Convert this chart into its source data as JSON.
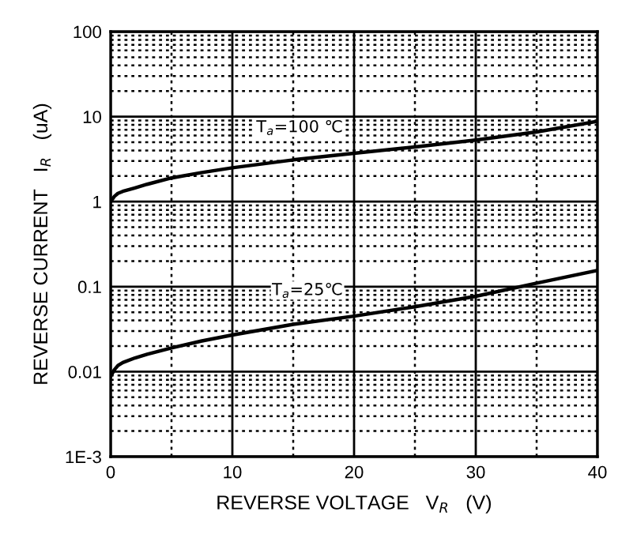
{
  "chart_data": {
    "type": "line",
    "xlabel": "REVERSE VOLTAGE   V$_{R}$   (V)",
    "ylabel": "REVERSE CURRENT   I$_{R}$   (uA)",
    "series": [
      {
        "color": "#000000",
        "x": [
          0,
          0.3,
          0.6,
          1,
          2,
          3,
          5,
          7.5,
          10,
          15,
          20,
          25,
          30,
          35,
          40
        ],
        "values": [
          1.0,
          1.15,
          1.25,
          1.32,
          1.45,
          1.6,
          1.9,
          2.2,
          2.5,
          3.1,
          3.7,
          4.4,
          5.3,
          6.6,
          8.8
        ]
      },
      {
        "color": "#000000",
        "x": [
          0,
          0.3,
          0.6,
          1,
          2,
          3,
          5,
          7.5,
          10,
          15,
          20,
          25,
          30,
          35,
          40
        ],
        "values": [
          0.0088,
          0.0105,
          0.0118,
          0.0128,
          0.0145,
          0.016,
          0.019,
          0.023,
          0.027,
          0.036,
          0.045,
          0.058,
          0.077,
          0.11,
          0.155
        ]
      }
    ],
    "annotations": [
      "T$_{a}$=100 ℃",
      "T$_{a}$=25℃"
    ],
    "log": "y",
    "grid": true,
    "line_style": "solid",
    "marker": "none",
    "xlim": [
      0,
      40
    ],
    "ylim": [
      0.001,
      100
    ],
    "xticks": [
      0,
      {
        "value": 5,
        "label": null
      },
      10,
      {
        "value": 15,
        "label": null
      },
      20,
      {
        "value": 25,
        "label": null
      },
      30,
      {
        "value": 35,
        "label": null
      },
      40
    ],
    "yticks": [
      {
        "value": 0.001,
        "label": "1E-3"
      },
      {
        "value": 0.002,
        "label": null
      },
      {
        "value": 0.003,
        "label": null
      },
      {
        "value": 0.004,
        "label": null
      },
      {
        "value": 0.005,
        "label": null
      },
      {
        "value": 0.006,
        "label": null
      },
      {
        "value": 0.007,
        "label": null
      },
      {
        "value": 0.008,
        "label": null
      },
      {
        "value": 0.009,
        "label": null
      },
      {
        "value": 0.01,
        "label": "0.01"
      },
      {
        "value": 0.02,
        "label": null
      },
      {
        "value": 0.03,
        "label": null
      },
      {
        "value": 0.04,
        "label": null
      },
      {
        "value": 0.05,
        "label": null
      },
      {
        "value": 0.06,
        "label": null
      },
      {
        "value": 0.07,
        "label": null
      },
      {
        "value": 0.08,
        "label": null
      },
      {
        "value": 0.09,
        "label": null
      },
      {
        "value": 0.1,
        "label": "0.1"
      },
      {
        "value": 0.2,
        "label": null
      },
      {
        "value": 0.3,
        "label": null
      },
      {
        "value": 0.4,
        "label": null
      },
      {
        "value": 0.5,
        "label": null
      },
      {
        "value": 0.6,
        "label": null
      },
      {
        "value": 0.7,
        "label": null
      },
      {
        "value": 0.8,
        "label": null
      },
      {
        "value": 0.9,
        "label": null
      },
      1,
      {
        "value": 2,
        "label": null
      },
      {
        "value": 3,
        "label": null
      },
      {
        "value": 4,
        "label": null
      },
      {
        "value": 5,
        "label": null
      },
      {
        "value": 6,
        "label": null
      },
      {
        "value": 7,
        "label": null
      },
      {
        "value": 8,
        "label": null
      },
      {
        "value": 9,
        "label": null
      },
      10,
      {
        "value": 20,
        "label": null
      },
      {
        "value": 30,
        "label": null
      },
      {
        "value": 40,
        "label": null
      },
      {
        "value": 50,
        "label": null
      },
      {
        "value": 60,
        "label": null
      },
      {
        "value": 70,
        "label": null
      },
      {
        "value": 80,
        "label": null
      },
      {
        "value": 90,
        "label": null
      },
      100
    ]
  }
}
